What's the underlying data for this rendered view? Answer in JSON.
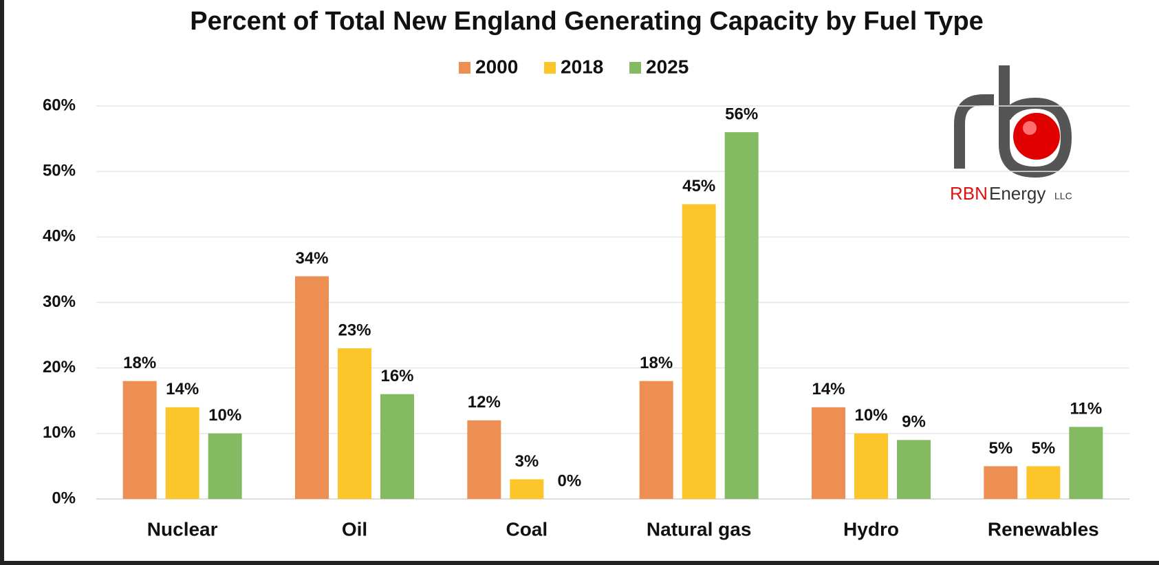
{
  "chart_data": {
    "type": "bar",
    "title": "Percent of Total New England Generating Capacity by Fuel Type",
    "categories": [
      "Nuclear",
      "Oil",
      "Coal",
      "Natural gas",
      "Hydro",
      "Renewables"
    ],
    "series": [
      {
        "name": "2000",
        "color": "#ED8F53",
        "values": [
          18,
          34,
          12,
          18,
          14,
          5
        ],
        "value_labels": [
          "18%",
          "34%",
          "12%",
          "18%",
          "14%",
          "5%"
        ]
      },
      {
        "name": "2018",
        "color": "#FCC52A",
        "values": [
          14,
          23,
          3,
          45,
          10,
          5
        ],
        "value_labels": [
          "14%",
          "23%",
          "3%",
          "45%",
          "10%",
          "5%"
        ]
      },
      {
        "name": "2025",
        "color": "#84BB62",
        "values": [
          10,
          16,
          0,
          56,
          9,
          11
        ],
        "value_labels": [
          "10%",
          "16%",
          "0%",
          "56%",
          "9%",
          "11%"
        ]
      }
    ],
    "ylim": [
      0,
      60
    ],
    "yticks": [
      {
        "value": 0,
        "label": "0%"
      },
      {
        "value": 10,
        "label": "10%"
      },
      {
        "value": 20,
        "label": "20%"
      },
      {
        "value": 30,
        "label": "30%"
      },
      {
        "value": 40,
        "label": "40%"
      },
      {
        "value": 50,
        "label": "50%"
      },
      {
        "value": 60,
        "label": "60%"
      }
    ],
    "grid": true,
    "legend": "top",
    "logo_text": [
      "RBN",
      "Energy",
      "LLC"
    ]
  }
}
